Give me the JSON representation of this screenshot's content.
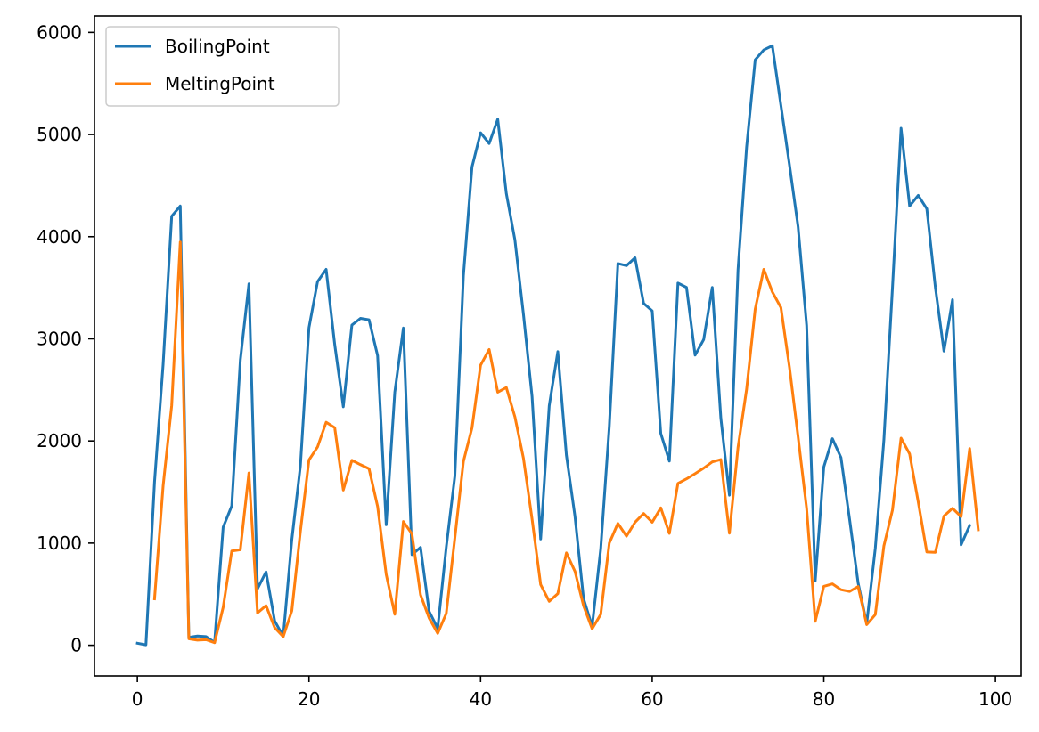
{
  "chart_data": {
    "type": "line",
    "title": "",
    "xlabel": "",
    "ylabel": "",
    "xlim": [
      -5,
      103
    ],
    "ylim": [
      -300,
      6160
    ],
    "xticks": [
      0,
      20,
      40,
      60,
      80,
      100
    ],
    "yticks": [
      0,
      1000,
      2000,
      3000,
      4000,
      5000,
      6000
    ],
    "grid": false,
    "legend_position": "top-left",
    "series": [
      {
        "name": "BoilingPoint",
        "color": "#1f77b4",
        "points": [
          [
            0,
            20
          ],
          [
            1,
            4
          ],
          [
            2,
            1600
          ],
          [
            3,
            2750
          ],
          [
            4,
            4200
          ],
          [
            5,
            4300
          ],
          [
            6,
            77
          ],
          [
            7,
            90
          ],
          [
            8,
            85
          ],
          [
            9,
            27
          ],
          [
            10,
            1156
          ],
          [
            11,
            1363
          ],
          [
            12,
            2792
          ],
          [
            13,
            3538
          ],
          [
            14,
            553
          ],
          [
            15,
            718
          ],
          [
            16,
            239
          ],
          [
            17,
            87
          ],
          [
            18,
            1032
          ],
          [
            19,
            1757
          ],
          [
            20,
            3109
          ],
          [
            21,
            3560
          ],
          [
            22,
            3680
          ],
          [
            23,
            2944
          ],
          [
            24,
            2334
          ],
          [
            25,
            3134
          ],
          [
            26,
            3200
          ],
          [
            27,
            3186
          ],
          [
            28,
            2835
          ],
          [
            29,
            1180
          ],
          [
            30,
            2477
          ],
          [
            31,
            3106
          ],
          [
            32,
            887
          ],
          [
            33,
            958
          ],
          [
            34,
            332
          ],
          [
            35,
            165
          ],
          [
            36,
            961
          ],
          [
            37,
            1655
          ],
          [
            38,
            3618
          ],
          [
            39,
            4682
          ],
          [
            40,
            5017
          ],
          [
            41,
            4912
          ],
          [
            42,
            5150
          ],
          [
            43,
            4423
          ],
          [
            44,
            3968
          ],
          [
            45,
            3236
          ],
          [
            46,
            2435
          ],
          [
            47,
            1040
          ],
          [
            48,
            2345
          ],
          [
            49,
            2875
          ],
          [
            50,
            1860
          ],
          [
            51,
            1261
          ],
          [
            52,
            457
          ],
          [
            53,
            185
          ],
          [
            54,
            944
          ],
          [
            55,
            2143
          ],
          [
            56,
            3737
          ],
          [
            57,
            3716
          ],
          [
            58,
            3793
          ],
          [
            59,
            3347
          ],
          [
            60,
            3273
          ],
          [
            61,
            2073
          ],
          [
            62,
            1803
          ],
          [
            63,
            3546
          ],
          [
            64,
            3503
          ],
          [
            65,
            2840
          ],
          [
            66,
            2993
          ],
          [
            67,
            3503
          ],
          [
            68,
            2223
          ],
          [
            69,
            1469
          ],
          [
            70,
            3675
          ],
          [
            71,
            4876
          ],
          [
            72,
            5731
          ],
          [
            73,
            5828
          ],
          [
            74,
            5869
          ],
          [
            75,
            5285
          ],
          [
            76,
            4701
          ],
          [
            77,
            4098
          ],
          [
            78,
            3130
          ],
          [
            79,
            630
          ],
          [
            80,
            1746
          ],
          [
            81,
            2022
          ],
          [
            82,
            1837
          ],
          [
            83,
            1235
          ],
          [
            84,
            610
          ],
          [
            85,
            211
          ],
          [
            86,
            950
          ],
          [
            87,
            2010
          ],
          [
            88,
            3500
          ],
          [
            89,
            5061
          ],
          [
            90,
            4300
          ],
          [
            91,
            4404
          ],
          [
            92,
            4273
          ],
          [
            93,
            3503
          ],
          [
            94,
            2880
          ],
          [
            95,
            3383
          ],
          [
            96,
            983
          ],
          [
            97,
            1173
          ]
        ]
      },
      {
        "name": "MeltingPoint",
        "color": "#ff7f0e",
        "points": [
          [
            2,
            454
          ],
          [
            3,
            1560
          ],
          [
            4,
            2348
          ],
          [
            5,
            3948
          ],
          [
            6,
            63
          ],
          [
            7,
            50
          ],
          [
            8,
            54
          ],
          [
            9,
            25
          ],
          [
            10,
            371
          ],
          [
            11,
            923
          ],
          [
            12,
            934
          ],
          [
            13,
            1687
          ],
          [
            14,
            317
          ],
          [
            15,
            388
          ],
          [
            16,
            172
          ],
          [
            17,
            84
          ],
          [
            18,
            337
          ],
          [
            19,
            1115
          ],
          [
            20,
            1814
          ],
          [
            21,
            1941
          ],
          [
            22,
            2183
          ],
          [
            23,
            2130
          ],
          [
            24,
            1519
          ],
          [
            25,
            1811
          ],
          [
            26,
            1768
          ],
          [
            27,
            1728
          ],
          [
            28,
            1358
          ],
          [
            29,
            693
          ],
          [
            30,
            303
          ],
          [
            31,
            1211
          ],
          [
            32,
            1090
          ],
          [
            33,
            494
          ],
          [
            34,
            266
          ],
          [
            35,
            116
          ],
          [
            36,
            312
          ],
          [
            37,
            1050
          ],
          [
            38,
            1799
          ],
          [
            39,
            2128
          ],
          [
            40,
            2742
          ],
          [
            41,
            2896
          ],
          [
            42,
            2477
          ],
          [
            43,
            2523
          ],
          [
            44,
            2236
          ],
          [
            45,
            1828
          ],
          [
            46,
            1235
          ],
          [
            47,
            594
          ],
          [
            48,
            430
          ],
          [
            49,
            505
          ],
          [
            50,
            904
          ],
          [
            51,
            723
          ],
          [
            52,
            387
          ],
          [
            53,
            161
          ],
          [
            54,
            302
          ],
          [
            55,
            1000
          ],
          [
            56,
            1193
          ],
          [
            57,
            1068
          ],
          [
            58,
            1204
          ],
          [
            59,
            1289
          ],
          [
            60,
            1204
          ],
          [
            61,
            1345
          ],
          [
            62,
            1095
          ],
          [
            63,
            1585
          ],
          [
            64,
            1629
          ],
          [
            65,
            1680
          ],
          [
            66,
            1734
          ],
          [
            67,
            1795
          ],
          [
            68,
            1818
          ],
          [
            69,
            1097
          ],
          [
            70,
            1936
          ],
          [
            71,
            2506
          ],
          [
            72,
            3290
          ],
          [
            73,
            3680
          ],
          [
            74,
            3459
          ],
          [
            75,
            3306
          ],
          [
            76,
            2719
          ],
          [
            77,
            2041
          ],
          [
            78,
            1337
          ],
          [
            79,
            234
          ],
          [
            80,
            577
          ],
          [
            81,
            601
          ],
          [
            82,
            544
          ],
          [
            83,
            527
          ],
          [
            84,
            575
          ],
          [
            85,
            202
          ],
          [
            86,
            300
          ],
          [
            87,
            973
          ],
          [
            88,
            1323
          ],
          [
            89,
            2028
          ],
          [
            90,
            1873
          ],
          [
            91,
            1405
          ],
          [
            92,
            913
          ],
          [
            93,
            910
          ],
          [
            94,
            1265
          ],
          [
            95,
            1340
          ],
          [
            96,
            1259
          ],
          [
            97,
            1925
          ],
          [
            98,
            1130
          ]
        ]
      }
    ]
  }
}
